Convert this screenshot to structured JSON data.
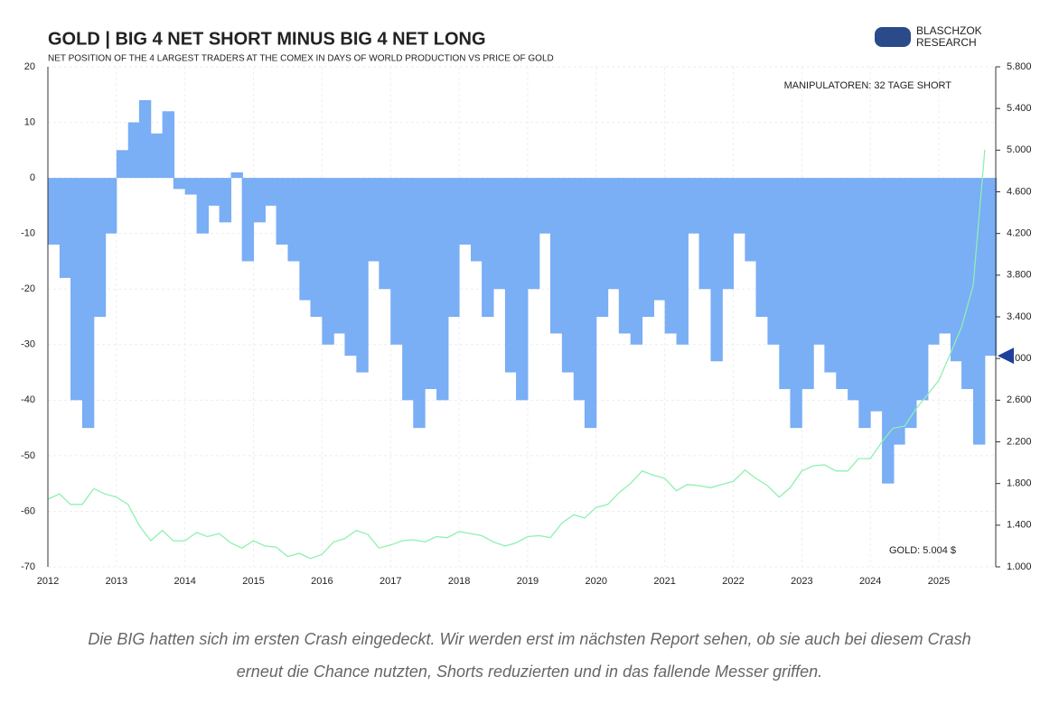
{
  "chart_data": {
    "type": "bar-line",
    "title": "GOLD | BIG 4 NET SHORT MINUS BIG 4 NET LONG",
    "subtitle": "NET POSITION OF THE 4 LARGEST TRADERS AT THE COMEX IN DAYS OF WORLD PRODUCTION VS PRICE OF GOLD",
    "annotations": [
      "MANIPULATOREN: 32 TAGE SHORT",
      "GOLD: 5.004 $"
    ],
    "marker": -32,
    "x": [
      2012,
      2012.17,
      2012.33,
      2012.5,
      2012.67,
      2012.83,
      2013,
      2013.17,
      2013.33,
      2013.5,
      2013.67,
      2013.83,
      2014,
      2014.17,
      2014.33,
      2014.5,
      2014.67,
      2014.83,
      2015,
      2015.17,
      2015.33,
      2015.5,
      2015.67,
      2015.83,
      2016,
      2016.17,
      2016.33,
      2016.5,
      2016.67,
      2016.83,
      2017,
      2017.17,
      2017.33,
      2017.5,
      2017.67,
      2017.83,
      2018,
      2018.17,
      2018.33,
      2018.5,
      2018.67,
      2018.83,
      2019,
      2019.17,
      2019.33,
      2019.5,
      2019.67,
      2019.83,
      2020,
      2020.17,
      2020.33,
      2020.5,
      2020.67,
      2020.83,
      2021,
      2021.17,
      2021.33,
      2021.5,
      2021.67,
      2021.83,
      2022,
      2022.17,
      2022.33,
      2022.5,
      2022.67,
      2022.83,
      2023,
      2023.17,
      2023.33,
      2023.5,
      2023.67,
      2023.83,
      2024,
      2024.17,
      2024.33,
      2024.5,
      2024.67,
      2024.83,
      2025,
      2025.17,
      2025.33,
      2025.5,
      2025.67
    ],
    "series": [
      {
        "name": "Big 4 net position",
        "color": "#7aaef5",
        "values": [
          -12,
          -18,
          -40,
          -45,
          -25,
          -10,
          5,
          10,
          14,
          8,
          12,
          -2,
          -3,
          -10,
          -5,
          -8,
          1,
          -15,
          -8,
          -5,
          -12,
          -15,
          -22,
          -25,
          -30,
          -28,
          -32,
          -35,
          -15,
          -20,
          -30,
          -40,
          -45,
          -38,
          -40,
          -25,
          -12,
          -15,
          -25,
          -20,
          -35,
          -40,
          -20,
          -10,
          -28,
          -35,
          -40,
          -45,
          -25,
          -20,
          -28,
          -30,
          -25,
          -22,
          -28,
          -30,
          -10,
          -20,
          -33,
          -20,
          -10,
          -15,
          -25,
          -30,
          -38,
          -45,
          -38,
          -30,
          -35,
          -38,
          -40,
          -45,
          -42,
          -55,
          -48,
          -45,
          -40,
          -30,
          -28,
          -33,
          -38,
          -48,
          -32
        ]
      },
      {
        "name": "Gold",
        "axis": "y2",
        "color": "#8ef0b0",
        "values": [
          1650,
          1700,
          1600,
          1600,
          1750,
          1700,
          1670,
          1600,
          1400,
          1250,
          1350,
          1250,
          1250,
          1330,
          1290,
          1320,
          1230,
          1180,
          1250,
          1200,
          1190,
          1100,
          1130,
          1080,
          1120,
          1240,
          1270,
          1350,
          1310,
          1180,
          1210,
          1250,
          1260,
          1240,
          1290,
          1280,
          1340,
          1320,
          1300,
          1240,
          1200,
          1230,
          1290,
          1300,
          1280,
          1420,
          1500,
          1470,
          1570,
          1600,
          1710,
          1800,
          1920,
          1880,
          1850,
          1730,
          1790,
          1780,
          1760,
          1790,
          1820,
          1930,
          1850,
          1780,
          1670,
          1760,
          1920,
          1970,
          1980,
          1920,
          1920,
          2040,
          2040,
          2200,
          2330,
          2350,
          2520,
          2650,
          2790,
          3050,
          3300,
          3700,
          5004
        ]
      }
    ],
    "xlim": [
      2012,
      2025.83
    ],
    "xticks": [
      2012,
      2013,
      2014,
      2015,
      2016,
      2017,
      2018,
      2019,
      2020,
      2021,
      2022,
      2023,
      2024,
      2025
    ],
    "ylim": [
      -70,
      20
    ],
    "yticks": [
      20,
      10,
      0,
      -10,
      -20,
      -30,
      -40,
      -50,
      -60,
      -70
    ],
    "y2lim": [
      1000,
      5800
    ],
    "y2ticks": [
      {
        "value": 5800,
        "label": "5.800"
      },
      {
        "value": 5400,
        "label": "5.400"
      },
      {
        "value": 5000,
        "label": "5.000"
      },
      {
        "value": 4600,
        "label": "4.600"
      },
      {
        "value": 4200,
        "label": "4.200"
      },
      {
        "value": 3800,
        "label": "3.800"
      },
      {
        "value": 3400,
        "label": "3.400"
      },
      {
        "value": 3000,
        "label": "3.000"
      },
      {
        "value": 2600,
        "label": "2.600"
      },
      {
        "value": 2200,
        "label": "2.200"
      },
      {
        "value": 1800,
        "label": "1.800"
      },
      {
        "value": 1400,
        "label": "1.400"
      },
      {
        "value": 1000,
        "label": "1.000"
      }
    ],
    "grid": true
  },
  "logo": [
    "BLASCHZOK",
    "RESEARCH"
  ],
  "caption": [
    "Die BIG hatten sich im ersten Crash eingedeckt. Wir werden erst im nächsten Report sehen, ob sie auch bei diesem Crash",
    "erneut die Chance nutzten, Shorts reduzierten und in das fallende Messer griffen."
  ]
}
